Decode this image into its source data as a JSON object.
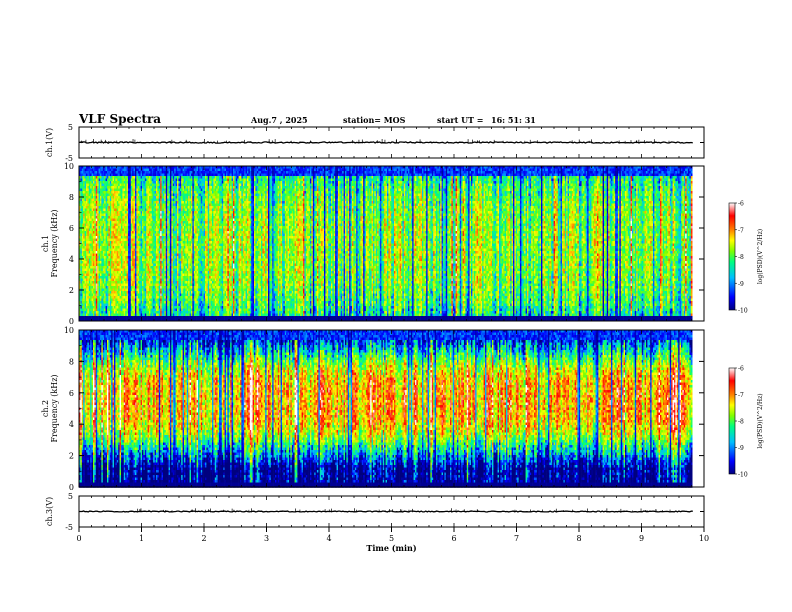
{
  "header": {
    "title": "VLF Spectra",
    "date": "Aug.7 , 2025",
    "station": "station= MOS",
    "start_label": "start UT =",
    "start_time": "16: 51: 31"
  },
  "chart_data": [
    {
      "type": "line",
      "panel": "ch1-waveform",
      "ylabel": "ch.1(V)",
      "ylim": [
        -5,
        5
      ],
      "ytick_labels": [
        "5",
        "-5"
      ],
      "xlim": [
        0,
        10
      ],
      "series": [
        {
          "name": "ch.1",
          "baseline": 0,
          "amplitude_approx": 0.4
        }
      ]
    },
    {
      "type": "heatmap",
      "panel": "ch1-spectrogram",
      "ylabel": "ch.1 Frequency (kHz)",
      "ylim": [
        0,
        10
      ],
      "ytick_labels": [
        "0",
        "2",
        "4",
        "6",
        "8",
        "10"
      ],
      "xlim": [
        0,
        9.8
      ],
      "z_range": [
        -10,
        -6
      ],
      "colorbar_label": "log(PSD)(V^2/Hz)",
      "colorbar_ticks": [
        "-6",
        "-7",
        "-8",
        "-9",
        "-10"
      ],
      "dominant_band_khz": [
        0.3,
        9.5
      ],
      "typical_log_psd": -8
    },
    {
      "type": "heatmap",
      "panel": "ch2-spectrogram",
      "ylabel": "ch.2 Frequency (kHz)",
      "ylim": [
        0,
        10
      ],
      "ytick_labels": [
        "0",
        "2",
        "4",
        "6",
        "8",
        "10"
      ],
      "xlim": [
        0,
        9.8
      ],
      "z_range": [
        -10,
        -6
      ],
      "colorbar_label": "log(PSD)(V^2/Hz)",
      "colorbar_ticks": [
        "-6",
        "-7",
        "-8",
        "-9",
        "-10"
      ],
      "dominant_band_khz": [
        3,
        8
      ],
      "typical_log_psd": -7.2
    },
    {
      "type": "line",
      "panel": "ch3-waveform",
      "ylabel": "ch.3(V)",
      "ylim": [
        -5,
        5
      ],
      "ytick_labels": [
        "5",
        "-5"
      ],
      "xlim": [
        0,
        10
      ],
      "series": [
        {
          "name": "ch.3",
          "baseline": 0,
          "amplitude_approx": 0.3
        }
      ]
    }
  ],
  "x_axis": {
    "label": "Time (min)",
    "range": [
      0,
      10
    ],
    "ticks": [
      "0",
      "1",
      "2",
      "3",
      "4",
      "5",
      "6",
      "7",
      "8",
      "9",
      "10"
    ]
  },
  "colorscale": [
    "#00007f",
    "#0000ff",
    "#00bfff",
    "#00ff7f",
    "#7fff00",
    "#ffff00",
    "#ff7f00",
    "#ff0000",
    "#ffffff"
  ]
}
